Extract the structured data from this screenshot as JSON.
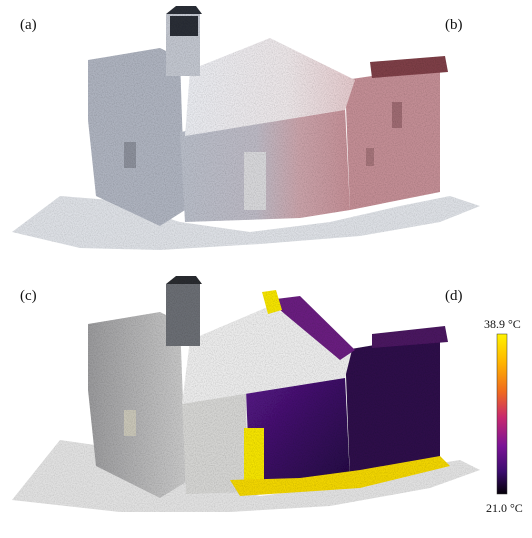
{
  "panels": [
    {
      "id": "a",
      "label": "(a)"
    },
    {
      "id": "b",
      "label": "(b)"
    },
    {
      "id": "c",
      "label": "(c)"
    },
    {
      "id": "d",
      "label": "(d)"
    }
  ],
  "colorbar": {
    "max_label": "38.9 °C",
    "min_label": "21.0 °C",
    "max_value": 38.9,
    "min_value": 21.0,
    "unit": "°C",
    "stops": [
      "#fff200",
      "#ffb400",
      "#f06a1e",
      "#c8296e",
      "#7a1396",
      "#3b0c6e",
      "#050008"
    ]
  },
  "colors": {
    "grey_cloud": "#b7bcc6",
    "pink_cloud": "#c99aa0",
    "dark_tower": "#262a32",
    "thermal_hot": "#f5e400",
    "thermal_cool": "#3c0a5a"
  }
}
